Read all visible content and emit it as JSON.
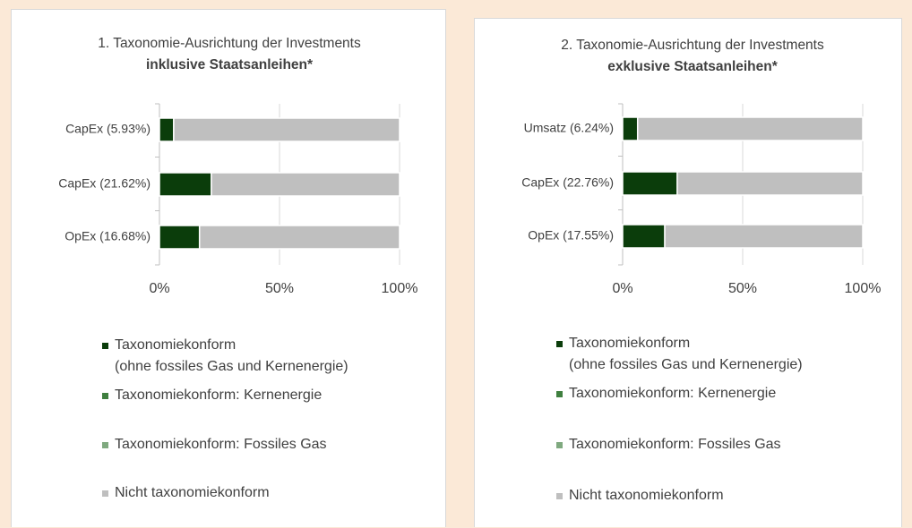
{
  "chart_data": [
    {
      "type": "bar",
      "orientation": "horizontal",
      "stacked": true,
      "title": "1. Taxonomie-Ausrichtung der Investments",
      "subtitle": "inklusive Staatsanleihen*",
      "categories": [
        "CapEx (5.93%)",
        "CapEx (21.62%)",
        "OpEx (16.68%)"
      ],
      "series": [
        {
          "name": "Taxonomiekonform\n(ohne fossiles Gas und Kernenergie)",
          "color": "#0b3d0b",
          "values": [
            5.93,
            21.62,
            16.68
          ]
        },
        {
          "name": "Taxonomiekonform: Kernenergie",
          "color": "#3f7f3f",
          "values": [
            0,
            0,
            0
          ]
        },
        {
          "name": "Taxonomiekonform: Fossiles Gas",
          "color": "#7fa97f",
          "values": [
            0,
            0,
            0
          ]
        },
        {
          "name": "Nicht taxonomiekonform",
          "color": "#bfbfbf",
          "values": [
            94.07,
            78.38,
            83.32
          ]
        }
      ],
      "xlim": [
        0,
        100
      ],
      "xticks": [
        {
          "value": 0,
          "label": "0%"
        },
        {
          "value": 50,
          "label": "50%"
        },
        {
          "value": 100,
          "label": "100%"
        }
      ],
      "grid": true,
      "legend": "bottom"
    },
    {
      "type": "bar",
      "orientation": "horizontal",
      "stacked": true,
      "title": "2. Taxonomie-Ausrichtung der Investments",
      "subtitle": "exklusive Staatsanleihen*",
      "categories": [
        "Umsatz (6.24%)",
        "CapEx (22.76%)",
        "OpEx (17.55%)"
      ],
      "series": [
        {
          "name": "Taxonomiekonform\n(ohne fossiles Gas und Kernenergie)",
          "color": "#0b3d0b",
          "values": [
            6.24,
            22.76,
            17.55
          ]
        },
        {
          "name": "Taxonomiekonform: Kernenergie",
          "color": "#3f7f3f",
          "values": [
            0,
            0,
            0
          ]
        },
        {
          "name": "Taxonomiekonform: Fossiles Gas",
          "color": "#7fa97f",
          "values": [
            0,
            0,
            0
          ]
        },
        {
          "name": "Nicht taxonomiekonform",
          "color": "#bfbfbf",
          "values": [
            93.76,
            77.24,
            82.45
          ]
        }
      ],
      "xlim": [
        0,
        100
      ],
      "xticks": [
        {
          "value": 0,
          "label": "0%"
        },
        {
          "value": 50,
          "label": "50%"
        },
        {
          "value": 100,
          "label": "100%"
        }
      ],
      "grid": true,
      "legend": "bottom"
    }
  ]
}
